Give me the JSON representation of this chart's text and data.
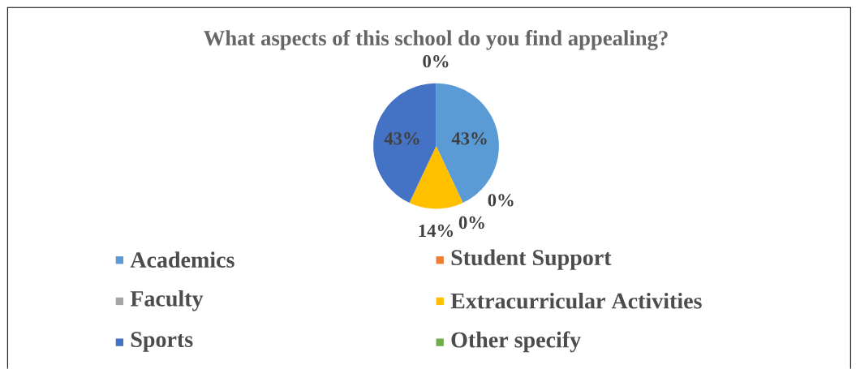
{
  "chart_data": {
    "type": "pie",
    "title": "What aspects of this school do you find appealing?",
    "categories": [
      "Academics",
      "Student Support",
      "Faculty",
      "Extracurricular Activities",
      "Sports",
      "Other specify"
    ],
    "values": [
      43,
      0,
      0,
      14,
      43,
      0
    ],
    "value_labels": [
      "43%",
      "0%",
      "0%",
      "14%",
      "43%",
      "0%"
    ],
    "colors": [
      "#5b9bd5",
      "#ed7d31",
      "#a5a5a5",
      "#ffc000",
      "#4472c4",
      "#70ad47"
    ],
    "legend": "bottom"
  }
}
